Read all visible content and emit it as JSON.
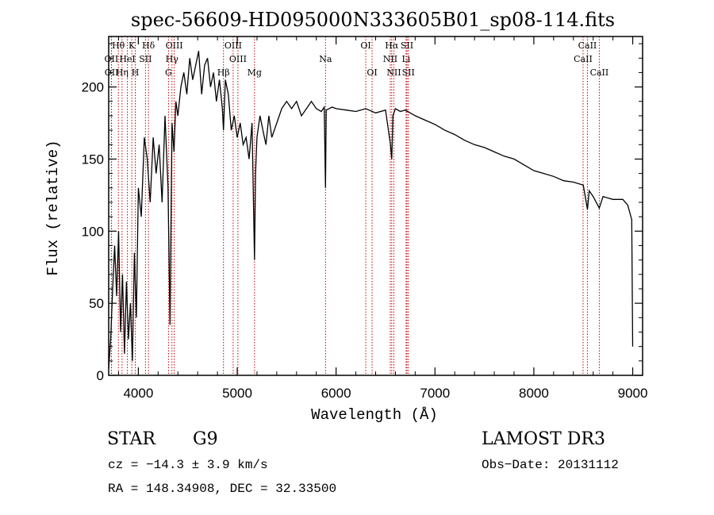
{
  "chart_data": {
    "type": "line",
    "title": "spec-56609-HD095000N333605B01_sp08-114.fits",
    "xlabel": "Wavelength (Å)",
    "ylabel": "Flux (relative)",
    "xlim": [
      3700,
      9100
    ],
    "ylim": [
      0,
      235
    ],
    "xticks": [
      4000,
      5000,
      6000,
      7000,
      8000,
      9000
    ],
    "yticks": [
      0,
      50,
      100,
      150,
      200
    ],
    "xtick_labels": [
      "4000",
      "5000",
      "6000",
      "7000",
      "8000",
      "9000"
    ],
    "ytick_labels": [
      "0",
      "50",
      "100",
      "150",
      "200"
    ],
    "series": [
      {
        "name": "flux",
        "x": [
          3700,
          3720,
          3740,
          3760,
          3780,
          3800,
          3820,
          3840,
          3860,
          3880,
          3900,
          3920,
          3940,
          3960,
          3980,
          4000,
          4030,
          4060,
          4090,
          4120,
          4150,
          4180,
          4210,
          4240,
          4270,
          4300,
          4320,
          4340,
          4360,
          4380,
          4400,
          4430,
          4460,
          4490,
          4520,
          4550,
          4580,
          4610,
          4640,
          4670,
          4700,
          4730,
          4760,
          4790,
          4820,
          4850,
          4861,
          4880,
          4910,
          4940,
          4970,
          5000,
          5030,
          5060,
          5090,
          5120,
          5150,
          5175,
          5185,
          5200,
          5230,
          5260,
          5290,
          5320,
          5350,
          5400,
          5450,
          5500,
          5550,
          5600,
          5650,
          5700,
          5750,
          5800,
          5850,
          5880,
          5893,
          5900,
          5930,
          5960,
          6000,
          6100,
          6200,
          6300,
          6400,
          6500,
          6550,
          6563,
          6575,
          6600,
          6650,
          6700,
          6800,
          6900,
          7000,
          7100,
          7200,
          7300,
          7400,
          7500,
          7600,
          7700,
          7800,
          7900,
          8000,
          8100,
          8200,
          8300,
          8400,
          8500,
          8542,
          8560,
          8600,
          8662,
          8700,
          8800,
          8900,
          8950,
          8990,
          9000
        ],
        "y": [
          5,
          25,
          60,
          90,
          55,
          100,
          30,
          70,
          15,
          65,
          25,
          50,
          10,
          85,
          40,
          130,
          110,
          165,
          150,
          120,
          165,
          140,
          160,
          120,
          180,
          130,
          35,
          175,
          155,
          190,
          180,
          200,
          210,
          195,
          220,
          205,
          215,
          225,
          195,
          215,
          220,
          200,
          210,
          190,
          205,
          185,
          170,
          205,
          195,
          170,
          180,
          165,
          175,
          160,
          165,
          150,
          175,
          80,
          140,
          165,
          180,
          170,
          160,
          180,
          165,
          175,
          185,
          190,
          185,
          190,
          180,
          185,
          190,
          185,
          183,
          186,
          130,
          184,
          185,
          186,
          185,
          184,
          183,
          185,
          182,
          184,
          160,
          150,
          180,
          185,
          183,
          184,
          180,
          177,
          174,
          170,
          167,
          163,
          160,
          158,
          155,
          152,
          150,
          146,
          142,
          140,
          138,
          135,
          134,
          132,
          115,
          128,
          124,
          116,
          124,
          122,
          122,
          118,
          108,
          20
        ]
      }
    ],
    "lines": [
      {
        "label": "Hθ",
        "wavelength": 3798,
        "row": 1
      },
      {
        "label": "OII",
        "wavelength": 3727,
        "row": 2
      },
      {
        "label": "OII",
        "wavelength": 3729,
        "row": 3
      },
      {
        "label": "Hη",
        "wavelength": 3835,
        "row": 3
      },
      {
        "label": "HeI",
        "wavelength": 3889,
        "row": 2
      },
      {
        "label": "K",
        "wavelength": 3934,
        "row": 1
      },
      {
        "label": "H",
        "wavelength": 3969,
        "row": 3
      },
      {
        "label": "SII",
        "wavelength": 4072,
        "row": 2
      },
      {
        "label": "Hδ",
        "wavelength": 4102,
        "row": 1
      },
      {
        "label": "OIII",
        "wavelength": 4363,
        "row": 1
      },
      {
        "label": "Hγ",
        "wavelength": 4340,
        "row": 2
      },
      {
        "label": "G",
        "wavelength": 4305,
        "row": 3
      },
      {
        "label": "OIII",
        "wavelength": 4959,
        "row": 1
      },
      {
        "label": "OIII",
        "wavelength": 5007,
        "row": 2
      },
      {
        "label": "Hβ",
        "wavelength": 4861,
        "row": 3
      },
      {
        "label": "Mg",
        "wavelength": 5175,
        "row": 3
      },
      {
        "label": "Na",
        "wavelength": 5893,
        "row": 2
      },
      {
        "label": "OI",
        "wavelength": 6300,
        "row": 1
      },
      {
        "label": "OI",
        "wavelength": 6364,
        "row": 3
      },
      {
        "label": "Hα",
        "wavelength": 6563,
        "row": 1
      },
      {
        "label": "NII",
        "wavelength": 6548,
        "row": 2
      },
      {
        "label": "NII",
        "wavelength": 6584,
        "row": 3
      },
      {
        "label": "SII",
        "wavelength": 6717,
        "row": 1
      },
      {
        "label": "Li",
        "wavelength": 6708,
        "row": 2
      },
      {
        "label": "SII",
        "wavelength": 6731,
        "row": 3
      },
      {
        "label": "CaII",
        "wavelength": 8542,
        "row": 1
      },
      {
        "label": "CaII",
        "wavelength": 8498,
        "row": 2
      },
      {
        "label": "CaII",
        "wavelength": 8662,
        "row": 3
      }
    ]
  },
  "info": {
    "object_class": "STAR",
    "subclass": "G9",
    "survey": "LAMOST DR3",
    "cz": "cz = −14.3 ± 3.9 km/s",
    "obs_date": "Obs−Date: 20131112",
    "coords": "RA = 148.34908, DEC =  32.33500"
  },
  "colors": {
    "line": "#000000",
    "marker": "#cc0000"
  }
}
